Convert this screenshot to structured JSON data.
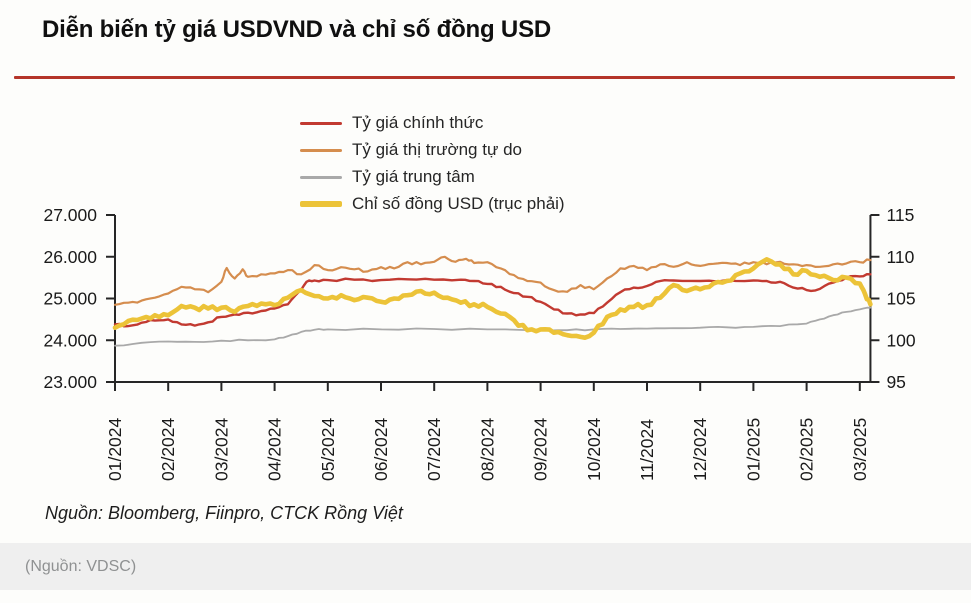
{
  "header": {
    "title": "Diễn biến tỷ giá USDVND và chỉ số đồng USD",
    "rule_color": "#b5352a"
  },
  "legend": {
    "items": [
      {
        "label": "Tỷ giá chính thức",
        "color": "#c23a31",
        "thick": false
      },
      {
        "label": "Tỷ giá thị trường tự do",
        "color": "#d58d4e",
        "thick": false
      },
      {
        "label": "Tỷ giá trung tâm",
        "color": "#a9a9a9",
        "thick": false
      },
      {
        "label": "Chỉ số đồng USD (trục phải)",
        "color": "#ecc338",
        "thick": true
      }
    ]
  },
  "chart_data": {
    "type": "line",
    "title": "Diễn biến tỷ giá USDVND và chỉ số đồng USD",
    "x_tick_labels": [
      "01/2024",
      "02/2024",
      "03/2024",
      "04/2024",
      "05/2024",
      "06/2024",
      "07/2024",
      "08/2024",
      "09/2024",
      "10/2024",
      "11/2024",
      "12/2024",
      "01/2025",
      "02/2025",
      "03/2025"
    ],
    "left_axis": {
      "tick_labels": [
        "27.000",
        "26.000",
        "25.000",
        "24.000",
        "23.000"
      ],
      "tick_values": [
        27000,
        26000,
        25000,
        24000,
        23000
      ],
      "range": [
        23000,
        27000
      ]
    },
    "right_axis": {
      "tick_labels": [
        "115",
        "110",
        "105",
        "100",
        "95"
      ],
      "tick_values": [
        115,
        110,
        105,
        100,
        95
      ],
      "range": [
        95,
        115
      ]
    },
    "grid": false,
    "legend_position": "top",
    "series": [
      {
        "name": "Tỷ giá chính thức",
        "axis": "left",
        "color": "#c23a31",
        "width": 2.4,
        "jitter": 1.3,
        "points": [
          [
            0,
            24380
          ],
          [
            0.25,
            24340
          ],
          [
            0.5,
            24420
          ],
          [
            0.75,
            24470
          ],
          [
            1,
            24500
          ],
          [
            1.25,
            24380
          ],
          [
            1.5,
            24350
          ],
          [
            1.75,
            24430
          ],
          [
            2,
            24560
          ],
          [
            2.25,
            24620
          ],
          [
            2.5,
            24660
          ],
          [
            2.75,
            24700
          ],
          [
            3,
            24760
          ],
          [
            3.25,
            24860
          ],
          [
            3.45,
            25150
          ],
          [
            3.6,
            25400
          ],
          [
            3.75,
            25430
          ],
          [
            4,
            25440
          ],
          [
            4.5,
            25450
          ],
          [
            5,
            25440
          ],
          [
            5.5,
            25460
          ],
          [
            6,
            25450
          ],
          [
            6.5,
            25450
          ],
          [
            6.75,
            25420
          ],
          [
            7,
            25350
          ],
          [
            7.25,
            25280
          ],
          [
            7.5,
            25130
          ],
          [
            7.75,
            25040
          ],
          [
            8,
            24920
          ],
          [
            8.25,
            24740
          ],
          [
            8.5,
            24640
          ],
          [
            8.75,
            24620
          ],
          [
            9,
            24650
          ],
          [
            9.25,
            24900
          ],
          [
            9.5,
            25150
          ],
          [
            9.75,
            25260
          ],
          [
            10,
            25300
          ],
          [
            10.25,
            25420
          ],
          [
            10.5,
            25430
          ],
          [
            11,
            25420
          ],
          [
            11.5,
            25440
          ],
          [
            12,
            25430
          ],
          [
            12.25,
            25420
          ],
          [
            12.5,
            25400
          ],
          [
            12.75,
            25260
          ],
          [
            13,
            25200
          ],
          [
            13.25,
            25230
          ],
          [
            13.5,
            25380
          ],
          [
            13.75,
            25500
          ],
          [
            14,
            25530
          ],
          [
            14.2,
            25580
          ]
        ]
      },
      {
        "name": "Tỷ giá thị trường tự do",
        "axis": "left",
        "color": "#d58d4e",
        "width": 2.2,
        "jitter": 1.5,
        "points": [
          [
            0,
            24850
          ],
          [
            0.25,
            24900
          ],
          [
            0.5,
            24950
          ],
          [
            0.75,
            25020
          ],
          [
            1,
            25120
          ],
          [
            1.25,
            25280
          ],
          [
            1.5,
            25220
          ],
          [
            1.75,
            25150
          ],
          [
            2,
            25400
          ],
          [
            2.1,
            25730
          ],
          [
            2.25,
            25480
          ],
          [
            2.4,
            25700
          ],
          [
            2.5,
            25520
          ],
          [
            2.75,
            25580
          ],
          [
            3,
            25600
          ],
          [
            3.25,
            25680
          ],
          [
            3.5,
            25580
          ],
          [
            3.75,
            25800
          ],
          [
            4,
            25680
          ],
          [
            4.25,
            25750
          ],
          [
            4.5,
            25700
          ],
          [
            4.75,
            25650
          ],
          [
            5,
            25750
          ],
          [
            5.25,
            25720
          ],
          [
            5.5,
            25870
          ],
          [
            5.75,
            25820
          ],
          [
            6,
            25880
          ],
          [
            6.2,
            26000
          ],
          [
            6.4,
            25880
          ],
          [
            6.6,
            25950
          ],
          [
            6.75,
            25850
          ],
          [
            7,
            25870
          ],
          [
            7.25,
            25720
          ],
          [
            7.5,
            25560
          ],
          [
            7.75,
            25420
          ],
          [
            8,
            25380
          ],
          [
            8.25,
            25200
          ],
          [
            8.5,
            25160
          ],
          [
            8.75,
            25320
          ],
          [
            9,
            25220
          ],
          [
            9.25,
            25480
          ],
          [
            9.5,
            25720
          ],
          [
            9.75,
            25780
          ],
          [
            10,
            25680
          ],
          [
            10.25,
            25820
          ],
          [
            10.5,
            25760
          ],
          [
            10.75,
            25870
          ],
          [
            11,
            25780
          ],
          [
            11.25,
            25830
          ],
          [
            11.5,
            25850
          ],
          [
            11.75,
            25800
          ],
          [
            12,
            25870
          ],
          [
            12.25,
            25820
          ],
          [
            12.5,
            25880
          ],
          [
            12.75,
            25820
          ],
          [
            13,
            25800
          ],
          [
            13.25,
            25760
          ],
          [
            13.5,
            25820
          ],
          [
            13.75,
            25840
          ],
          [
            14,
            25870
          ],
          [
            14.2,
            25920
          ]
        ]
      },
      {
        "name": "Tỷ giá trung tâm",
        "axis": "left",
        "color": "#a9a9a9",
        "width": 1.8,
        "jitter": 0.7,
        "points": [
          [
            0,
            23870
          ],
          [
            0.5,
            23940
          ],
          [
            1,
            23970
          ],
          [
            1.5,
            23960
          ],
          [
            2,
            23990
          ],
          [
            2.5,
            24000
          ],
          [
            3,
            24020
          ],
          [
            3.25,
            24100
          ],
          [
            3.5,
            24200
          ],
          [
            3.75,
            24250
          ],
          [
            4,
            24260
          ],
          [
            5,
            24260
          ],
          [
            6,
            24270
          ],
          [
            7,
            24260
          ],
          [
            8,
            24230
          ],
          [
            8.5,
            24240
          ],
          [
            9,
            24260
          ],
          [
            9.5,
            24270
          ],
          [
            10,
            24280
          ],
          [
            10.5,
            24290
          ],
          [
            11,
            24300
          ],
          [
            11.5,
            24310
          ],
          [
            12,
            24320
          ],
          [
            12.5,
            24340
          ],
          [
            13,
            24400
          ],
          [
            13.25,
            24500
          ],
          [
            13.5,
            24600
          ],
          [
            13.75,
            24680
          ],
          [
            14,
            24740
          ],
          [
            14.2,
            24780
          ]
        ]
      },
      {
        "name": "Chỉ số đồng USD (trục phải)",
        "axis": "right",
        "color": "#ecc338",
        "width": 4.6,
        "jitter": 2.2,
        "points": [
          [
            0,
            101.5
          ],
          [
            0.25,
            102.3
          ],
          [
            0.5,
            102.6
          ],
          [
            0.75,
            103.0
          ],
          [
            1,
            103.0
          ],
          [
            1.25,
            104.1
          ],
          [
            1.5,
            103.9
          ],
          [
            1.75,
            103.8
          ],
          [
            2,
            103.9
          ],
          [
            2.25,
            103.4
          ],
          [
            2.5,
            104.1
          ],
          [
            2.75,
            104.4
          ],
          [
            3,
            104.2
          ],
          [
            3.25,
            105.1
          ],
          [
            3.5,
            106.0
          ],
          [
            3.75,
            105.3
          ],
          [
            4,
            105.0
          ],
          [
            4.25,
            105.4
          ],
          [
            4.5,
            104.8
          ],
          [
            4.75,
            105.1
          ],
          [
            5,
            104.6
          ],
          [
            5.25,
            105.0
          ],
          [
            5.5,
            105.4
          ],
          [
            5.75,
            105.9
          ],
          [
            6,
            105.7
          ],
          [
            6.25,
            105.1
          ],
          [
            6.5,
            104.5
          ],
          [
            6.75,
            104.3
          ],
          [
            7,
            104.0
          ],
          [
            7.25,
            103.2
          ],
          [
            7.5,
            102.4
          ],
          [
            7.75,
            101.2
          ],
          [
            8,
            101.3
          ],
          [
            8.25,
            100.9
          ],
          [
            8.5,
            100.6
          ],
          [
            8.75,
            100.4
          ],
          [
            9,
            100.9
          ],
          [
            9.25,
            102.8
          ],
          [
            9.5,
            103.7
          ],
          [
            9.75,
            104.0
          ],
          [
            10,
            104.2
          ],
          [
            10.25,
            105.1
          ],
          [
            10.5,
            106.6
          ],
          [
            10.75,
            105.9
          ],
          [
            11,
            106.1
          ],
          [
            11.25,
            106.8
          ],
          [
            11.5,
            107.1
          ],
          [
            11.75,
            108.0
          ],
          [
            12,
            108.6
          ],
          [
            12.25,
            109.7
          ],
          [
            12.5,
            109.1
          ],
          [
            12.75,
            107.9
          ],
          [
            13,
            108.3
          ],
          [
            13.25,
            107.6
          ],
          [
            13.5,
            107.2
          ],
          [
            13.75,
            107.5
          ],
          [
            14,
            106.8
          ],
          [
            14.1,
            105.5
          ],
          [
            14.2,
            104.3
          ]
        ]
      }
    ]
  },
  "source_note": "Nguồn: Bloomberg, Fiinpro, CTCK Rồng Việt",
  "footer": {
    "text": "(Nguồn: VDSC)"
  }
}
